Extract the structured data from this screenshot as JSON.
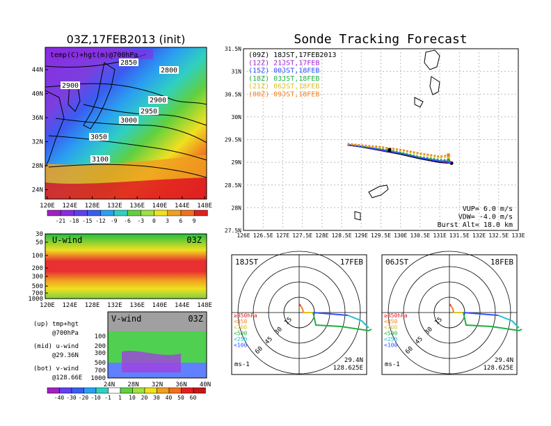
{
  "left_panel": {
    "title": "03Z,17FEB2013 (init)",
    "map_label": "temp(C)+hgt(m)@700hPa",
    "lat_ticks": [
      "44N",
      "40N",
      "36N",
      "32N",
      "28N",
      "24N"
    ],
    "lon_ticks": [
      "120E",
      "124E",
      "128E",
      "132E",
      "136E",
      "140E",
      "144E",
      "148E"
    ],
    "contour_labels": [
      "2850",
      "2800",
      "2900",
      "2900",
      "2950",
      "3000",
      "3050",
      "3100"
    ],
    "temp_colorbar": [
      "-21",
      "-18",
      "-15",
      "-12",
      "-9",
      "-6",
      "-3",
      "0",
      "3",
      "6",
      "9"
    ],
    "uwind_title": "U-wind",
    "uwind_time": "03Z",
    "pressure_ticks": [
      "30",
      "50",
      "100",
      "200",
      "300",
      "500",
      "700",
      "1000"
    ],
    "vwind_title": "V-wind",
    "vwind_time": "03Z",
    "vwind_pressure_ticks": [
      "100",
      "200",
      "300",
      "500",
      "700",
      "1000"
    ],
    "vwind_lat_ticks": [
      "24N",
      "28N",
      "32N",
      "36N",
      "40N"
    ],
    "wind_colorbar": [
      "-40",
      "-30",
      "-20",
      "-10",
      "-1",
      "1",
      "10",
      "20",
      "30",
      "40",
      "50",
      "60"
    ],
    "notes": [
      {
        "line1": "(up) tmp+hgt",
        "line2": "@700hPa"
      },
      {
        "line1": "(mid) u-wind",
        "line2": "@29.36N"
      },
      {
        "line1": "(bot) v-wind",
        "line2": "@128.66E"
      }
    ]
  },
  "right_panel": {
    "title": "Sonde Tracking Forecast",
    "lat_ticks": [
      "31.5N",
      "31N",
      "30.5N",
      "30N",
      "29.5N",
      "29N",
      "28.5N",
      "28N",
      "27.5N"
    ],
    "lon_ticks": [
      "126E",
      "126.5E",
      "127E",
      "127.5E",
      "128E",
      "128.5E",
      "129E",
      "129.5E",
      "130E",
      "130.5E",
      "131E",
      "131.5E",
      "132E",
      "132.5E",
      "133E"
    ],
    "legend": [
      {
        "label": "(09Z)  18JST,17FEB2013",
        "color": "#000000"
      },
      {
        "label": "(12Z)  21JST,17FEB",
        "color": "#a020d0"
      },
      {
        "label": "(15Z)  00JST,18FEB",
        "color": "#3050ff"
      },
      {
        "label": "(18Z)  03JST,18FEB",
        "color": "#20b040"
      },
      {
        "label": "(21Z)  06JST,18FEB",
        "color": "#e0c020"
      },
      {
        "label": "(00Z)  09JST,18FEB",
        "color": "#f08020"
      }
    ],
    "params": [
      "VUP=  6.0  m/s",
      "VDW= -4.0  m/s",
      "Burst Alt=  18.0  km"
    ],
    "hodographs": [
      {
        "time": "18JST",
        "date": "17FEB",
        "lat": "29.4N",
        "lon": "128.625E"
      },
      {
        "time": "06JST",
        "date": "18FEB",
        "lat": "29.4N",
        "lon": "128.625E"
      }
    ],
    "hodo_rings": [
      "15",
      "30",
      "45",
      "60"
    ],
    "hodo_levels": [
      {
        "label": "≥850hPa",
        "color": "#e02020"
      },
      {
        "label": "<850",
        "color": "#f08020"
      },
      {
        "label": "<700",
        "color": "#e0c020"
      },
      {
        "label": "<500",
        "color": "#20b040"
      },
      {
        "label": "<250",
        "color": "#20c0d0"
      },
      {
        "label": "<100",
        "color": "#3050ff"
      }
    ],
    "hodo_unit": "ms-1"
  },
  "chart_data": [
    {
      "type": "line",
      "title": "Sonde Tracking Forecast",
      "xlim": [
        126,
        133
      ],
      "ylim": [
        27.5,
        31.5
      ],
      "series": [
        {
          "name": "(09Z)  18JST,17FEB2013",
          "points": [
            [
              128.65,
              29.38
            ],
            [
              129.0,
              29.34
            ],
            [
              129.5,
              29.26
            ],
            [
              130.0,
              29.18
            ],
            [
              130.5,
              29.08
            ],
            [
              131.0,
              29.0
            ],
            [
              131.3,
              28.98
            ]
          ]
        },
        {
          "name": "(12Z)  21JST,17FEB",
          "points": [
            [
              128.65,
              29.39
            ],
            [
              129.0,
              29.35
            ],
            [
              129.5,
              29.27
            ],
            [
              130.0,
              29.2
            ],
            [
              130.5,
              29.1
            ],
            [
              131.0,
              29.02
            ],
            [
              131.25,
              29.0
            ]
          ]
        },
        {
          "name": "(15Z)  00JST,18FEB",
          "points": [
            [
              128.65,
              29.39
            ],
            [
              129.0,
              29.35
            ],
            [
              129.5,
              29.28
            ],
            [
              130.0,
              29.2
            ],
            [
              130.5,
              29.1
            ],
            [
              131.0,
              29.03
            ],
            [
              131.22,
              29.02
            ]
          ]
        },
        {
          "name": "(18Z)  03JST,18FEB",
          "points": [
            [
              128.65,
              29.4
            ],
            [
              129.0,
              29.36
            ],
            [
              129.5,
              29.3
            ],
            [
              130.0,
              29.22
            ],
            [
              130.5,
              29.12
            ],
            [
              131.0,
              29.06
            ],
            [
              131.22,
              29.05
            ]
          ]
        },
        {
          "name": "(21Z)  06JST,18FEB",
          "points": [
            [
              128.65,
              29.4
            ],
            [
              129.0,
              29.37
            ],
            [
              129.5,
              29.32
            ],
            [
              130.0,
              29.26
            ],
            [
              130.5,
              29.17
            ],
            [
              131.0,
              29.1
            ],
            [
              131.22,
              29.12
            ]
          ]
        },
        {
          "name": "(00Z)  09JST,18FEB",
          "points": [
            [
              128.65,
              29.41
            ],
            [
              129.0,
              29.38
            ],
            [
              129.5,
              29.34
            ],
            [
              130.0,
              29.28
            ],
            [
              130.5,
              29.2
            ],
            [
              131.0,
              29.13
            ],
            [
              131.22,
              29.16
            ]
          ]
        }
      ]
    },
    {
      "type": "heatmap",
      "title": "temp(C)+hgt(m)@700hPa",
      "xlim": [
        120,
        150
      ],
      "ylim": [
        22,
        47
      ],
      "contours": [
        2800,
        2850,
        2900,
        2950,
        3000,
        3050,
        3100
      ]
    }
  ]
}
